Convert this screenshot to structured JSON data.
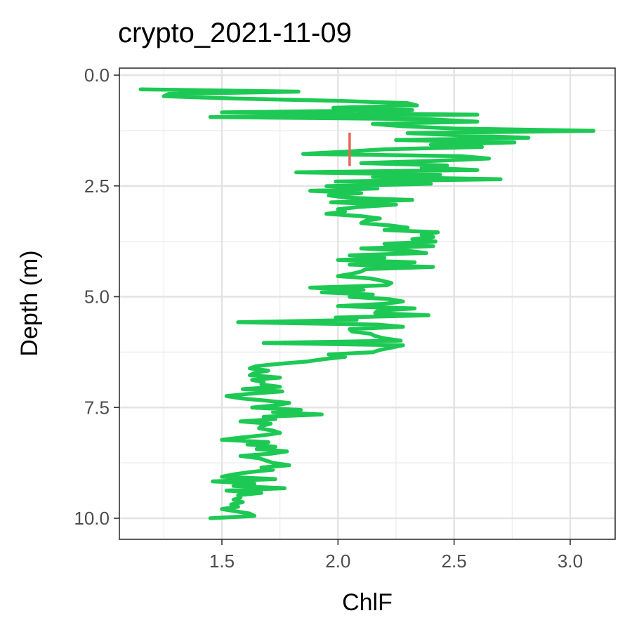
{
  "chart_data": {
    "type": "line",
    "title": "crypto_2021-11-09",
    "xlabel": "ChlF",
    "ylabel": "Depth (m)",
    "xlim": [
      1.05,
      3.2
    ],
    "ylim": [
      0.0,
      10.0
    ],
    "y_reversed": true,
    "grid": true,
    "legend": "none",
    "x_ticks": [
      {
        "value": 1.5,
        "label": "1.5"
      },
      {
        "value": 2.0,
        "label": "2.0"
      },
      {
        "value": 2.5,
        "label": "2.5"
      },
      {
        "value": 3.0,
        "label": "3.0"
      }
    ],
    "y_ticks": [
      {
        "value": 0.0,
        "label": "0.0"
      },
      {
        "value": 2.5,
        "label": "2.5"
      },
      {
        "value": 5.0,
        "label": "5.0"
      },
      {
        "value": 7.5,
        "label": "7.5"
      },
      {
        "value": 10.0,
        "label": "10.0"
      }
    ],
    "series": [
      {
        "color": "#1dc954",
        "x": [
          1.15,
          1.83,
          1.27,
          1.25,
          1.55,
          2.0,
          2.3,
          2.34,
          1.98,
          2.32,
          1.5,
          2.6,
          1.45,
          2.4,
          2.6,
          2.15,
          2.28,
          2.5,
          3.1,
          2.3,
          2.55,
          2.82,
          2.25,
          2.76,
          2.4,
          2.62,
          2.2,
          2.04,
          1.85,
          2.53,
          2.65,
          2.42,
          2.1,
          2.47,
          2.36,
          2.6,
          1.82,
          2.44,
          2.15,
          2.7,
          1.99,
          2.4,
          1.95,
          2.17,
          1.88,
          2.1,
          1.96,
          2.04,
          2.32,
          1.97,
          2.25,
          2.09,
          2.0,
          2.03,
          1.95,
          2.1,
          2.18,
          2.12,
          2.1,
          2.22,
          2.3,
          2.2,
          2.43,
          2.36,
          2.41,
          2.32,
          2.42,
          2.2,
          2.41,
          2.1,
          2.3,
          2.38,
          2.05,
          2.2,
          2.0,
          2.33,
          2.05,
          2.41,
          2.12,
          2.1,
          2.06,
          2.0,
          2.14,
          2.19,
          2.23,
          2.21,
          1.88,
          2.11,
          1.93,
          2.15,
          2.05,
          2.22,
          2.28,
          2.2,
          2.0,
          2.33,
          2.17,
          2.16,
          2.39,
          1.99,
          2.08,
          1.57,
          2.17,
          2.28,
          2.05,
          2.06,
          2.14,
          2.16,
          2.2,
          2.27,
          1.68,
          2.28,
          2.23,
          2.18,
          2.15,
          1.96,
          2.03,
          1.94,
          1.87,
          1.75,
          1.65,
          1.62,
          1.7,
          1.64,
          1.62,
          1.75,
          1.63,
          1.68,
          1.67,
          1.75,
          1.59,
          1.76,
          1.62,
          1.52,
          1.58,
          1.69,
          1.79,
          1.73,
          1.63,
          1.84,
          1.72,
          1.93,
          1.68,
          1.73,
          1.58,
          1.71,
          1.67,
          1.66,
          1.72,
          1.75,
          1.68,
          1.58,
          1.5,
          1.7,
          1.61,
          1.73,
          1.65,
          1.78,
          1.71,
          1.58,
          1.66,
          1.69,
          1.72,
          1.79,
          1.67,
          1.72,
          1.62,
          1.55,
          1.5,
          1.73,
          1.46,
          1.64,
          1.55,
          1.77,
          1.52,
          1.67,
          1.57,
          1.58,
          1.55,
          1.59,
          1.54,
          1.57,
          1.5,
          1.56,
          1.62,
          1.64,
          1.45
        ]
      },
      {
        "color": "#e8645a",
        "x": [
          2.05,
          2.05
        ]
      }
    ]
  }
}
